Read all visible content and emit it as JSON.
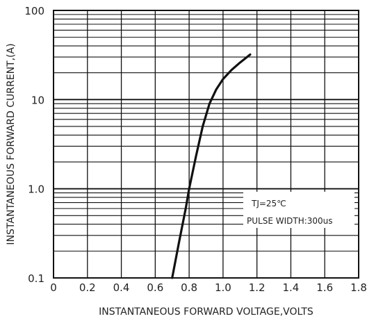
{
  "chart_data": {
    "type": "line",
    "title": "",
    "xlabel": "INSTANTANEOUS FORWARD VOLTAGE,VOLTS",
    "ylabel": "INSTANTANEOUS FORWARD CURRENT,(A)",
    "xlim": [
      0,
      1.8
    ],
    "ylim": [
      0.1,
      100
    ],
    "yscale": "log",
    "grid": true,
    "x_ticks": [
      "0",
      "0.2",
      "0.4",
      "0.6",
      "0.8",
      "1.0",
      "1.2",
      "1.4",
      "1.6",
      "1.8"
    ],
    "y_ticks": [
      "0.1",
      "1.0",
      "10",
      "100"
    ],
    "annotations": [
      "TJ=25℃",
      "PULSE WIDTH:300us"
    ],
    "legend_position": "right",
    "series": [
      {
        "x": [
          0.7,
          0.74,
          0.78,
          0.8,
          0.84,
          0.88,
          0.92,
          0.96,
          1.0,
          1.05,
          1.1,
          1.16
        ],
        "y": [
          0.1,
          0.25,
          0.6,
          1.0,
          2.3,
          5.0,
          9.0,
          13.0,
          17.0,
          21.5,
          26.0,
          32.0
        ]
      }
    ]
  }
}
